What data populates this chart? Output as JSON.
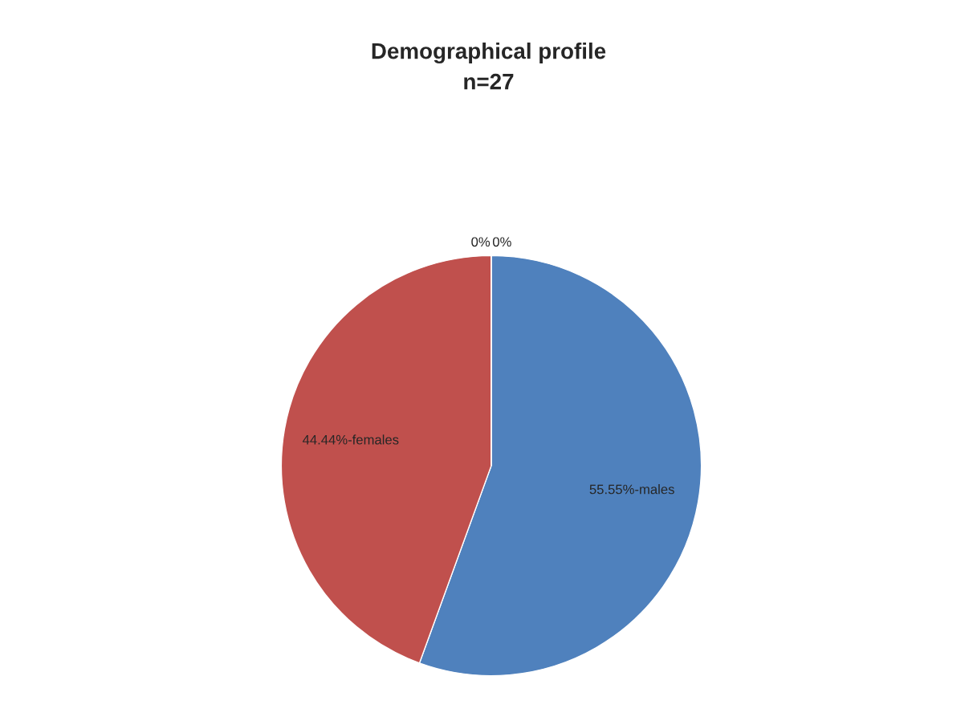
{
  "chart_data": {
    "type": "pie",
    "title": "Demographical profile\nn=27",
    "categories": [
      "55.55%-males",
      "44.44%-females",
      "0%",
      "0%"
    ],
    "values": [
      55.55,
      44.44,
      0,
      0
    ],
    "colors": [
      "#4f81bd",
      "#c0504d",
      "#9bbb59",
      "#8064a2"
    ],
    "legend": false
  }
}
